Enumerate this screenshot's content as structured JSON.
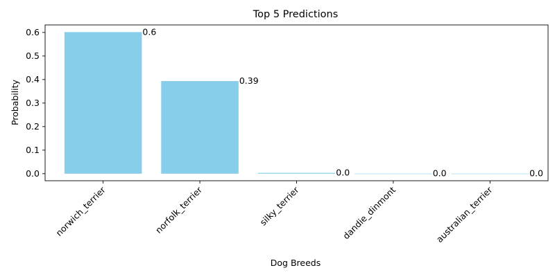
{
  "chart_data": {
    "type": "bar",
    "title": "Top 5 Predictions",
    "xlabel": "Dog Breeds",
    "ylabel": "Probability",
    "categories": [
      "norwich_terrier",
      "norfolk_terrier",
      "silky_terrier",
      "dandie_dinmont",
      "australian_terrier"
    ],
    "values": [
      0.6015,
      0.3935,
      0.0034,
      0.0003,
      0.0002
    ],
    "value_labels": [
      "0.6",
      "0.39",
      "0.0",
      "0.0",
      "0.0"
    ],
    "yticks": [
      0.0,
      0.1,
      0.2,
      0.3,
      0.4,
      0.5,
      0.6
    ],
    "ytick_labels": [
      "0.0",
      "0.1",
      "0.2",
      "0.3",
      "0.4",
      "0.5",
      "0.6"
    ],
    "ylim": [
      -0.03,
      0.632
    ],
    "grid": false,
    "legend": "none",
    "bar_color": "#87ceeb"
  }
}
